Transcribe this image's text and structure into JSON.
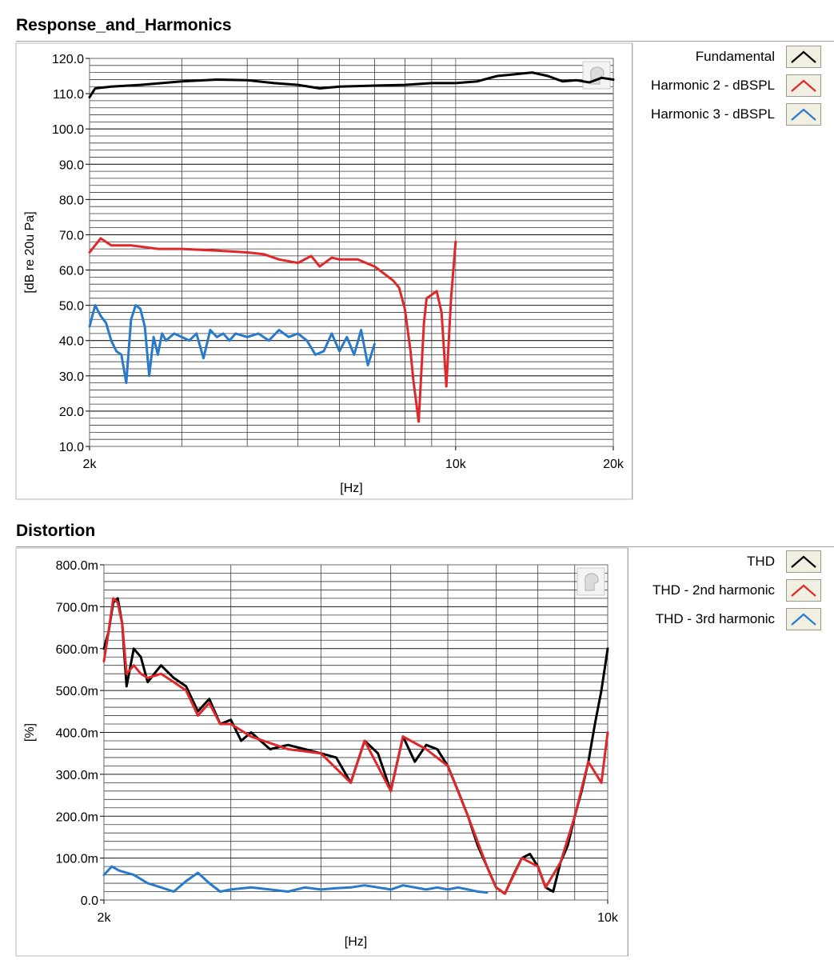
{
  "panels": [
    {
      "title": "Response_and_Harmonics",
      "legend": [
        {
          "label": "Fundamental",
          "color": "#000000"
        },
        {
          "label": "Harmonic 2 - dBSPL",
          "color": "#e0282a"
        },
        {
          "label": "Harmonic 3 - dBSPL",
          "color": "#2a7acb"
        }
      ]
    },
    {
      "title": "Distortion",
      "legend": [
        {
          "label": "THD",
          "color": "#000000"
        },
        {
          "label": "THD - 2nd harmonic",
          "color": "#e0282a"
        },
        {
          "label": "THD - 3rd harmonic",
          "color": "#2a7acb"
        }
      ]
    }
  ],
  "chart_data": [
    {
      "type": "line",
      "xscale": "log",
      "xlabel": "[Hz]",
      "ylabel": "[dB re 20u Pa]",
      "xlim": [
        2000,
        20000
      ],
      "ylim": [
        10,
        120
      ],
      "xticks": [
        {
          "value": 2000,
          "label": "2k"
        },
        {
          "value": 10000,
          "label": "10k"
        },
        {
          "value": 20000,
          "label": "20k"
        }
      ],
      "yticks": [
        "10.0",
        "20.0",
        "30.0",
        "40.0",
        "50.0",
        "60.0",
        "70.0",
        "80.0",
        "90.0",
        "100.0",
        "110.0",
        "120.0"
      ],
      "grid": true,
      "legend_position": "right",
      "series": [
        {
          "name": "Fundamental",
          "color": "#000000",
          "x": [
            2000,
            2050,
            2200,
            2500,
            3000,
            3500,
            4000,
            4500,
            5000,
            5500,
            6000,
            7000,
            8000,
            9000,
            10000,
            11000,
            12000,
            13000,
            14000,
            15000,
            16000,
            17000,
            18000,
            19000,
            20000
          ],
          "y": [
            109,
            111.5,
            112,
            112.5,
            113.5,
            114,
            113.8,
            113,
            112.5,
            111.5,
            112,
            112.3,
            112.5,
            113,
            113,
            113.5,
            115,
            115.5,
            116,
            115,
            113.5,
            113.8,
            113.2,
            114.5,
            114
          ]
        },
        {
          "name": "Harmonic 2 - dBSPL",
          "color": "#e0282a",
          "x": [
            2000,
            2050,
            2100,
            2200,
            2400,
            2700,
            3000,
            3500,
            4000,
            4300,
            4600,
            5000,
            5300,
            5500,
            5800,
            6000,
            6500,
            7000,
            7300,
            7600,
            7800,
            8000,
            8200,
            8300,
            8500,
            8700,
            8800,
            9000,
            9200,
            9400,
            9600,
            9800,
            10000
          ],
          "y": [
            65,
            67,
            69,
            67,
            67,
            66,
            66,
            65.5,
            65,
            64.5,
            63,
            62,
            64,
            61,
            63.5,
            63,
            63,
            61,
            59,
            57,
            55,
            49,
            37,
            29,
            17,
            45,
            52,
            53,
            54,
            48,
            27,
            52,
            68
          ]
        },
        {
          "name": "Harmonic 3 - dBSPL",
          "color": "#2a7acb",
          "x": [
            2000,
            2050,
            2100,
            2150,
            2200,
            2250,
            2300,
            2350,
            2400,
            2450,
            2500,
            2550,
            2600,
            2650,
            2700,
            2750,
            2800,
            2900,
            3000,
            3100,
            3200,
            3300,
            3400,
            3500,
            3600,
            3700,
            3800,
            4000,
            4200,
            4400,
            4600,
            4800,
            5000,
            5200,
            5400,
            5600,
            5800,
            6000,
            6200,
            6400,
            6600,
            6800,
            7000
          ],
          "y": [
            44,
            50,
            47,
            45,
            40,
            37,
            36,
            28,
            46,
            50,
            49,
            44,
            30,
            41,
            36,
            42,
            40,
            42,
            41,
            40,
            42,
            35,
            43,
            41,
            42,
            40,
            42,
            41,
            42,
            40,
            43,
            41,
            42,
            40,
            36,
            37,
            42,
            37,
            41,
            36,
            43,
            33,
            39
          ]
        }
      ]
    },
    {
      "type": "line",
      "xscale": "log",
      "xlabel": "[Hz]",
      "ylabel": "[%]",
      "xlim": [
        2000,
        10000
      ],
      "ylim": [
        0,
        800
      ],
      "xticks": [
        {
          "value": 2000,
          "label": "2k"
        },
        {
          "value": 10000,
          "label": "10k"
        }
      ],
      "yticks": [
        "0.0",
        "100.0m",
        "200.0m",
        "300.0m",
        "400.0m",
        "500.0m",
        "600.0m",
        "700.0m",
        "800.0m"
      ],
      "grid": true,
      "legend_position": "right",
      "series": [
        {
          "name": "THD",
          "color": "#000000",
          "x": [
            2000,
            2030,
            2060,
            2090,
            2120,
            2150,
            2200,
            2250,
            2300,
            2400,
            2500,
            2600,
            2700,
            2800,
            2900,
            3000,
            3100,
            3200,
            3400,
            3600,
            3800,
            4000,
            4200,
            4400,
            4600,
            4800,
            5000,
            5200,
            5400,
            5600,
            5800,
            6000,
            6200,
            6400,
            6600,
            6800,
            7000,
            7200,
            7400,
            7600,
            7800,
            8000,
            8200,
            8400,
            8600,
            8800,
            9000,
            9200,
            9400,
            9600,
            9800,
            10000
          ],
          "y": [
            600,
            640,
            710,
            720,
            660,
            510,
            600,
            580,
            520,
            560,
            530,
            510,
            450,
            480,
            420,
            430,
            380,
            400,
            360,
            370,
            360,
            350,
            340,
            280,
            380,
            350,
            260,
            390,
            330,
            370,
            360,
            320,
            260,
            200,
            130,
            80,
            30,
            15,
            60,
            100,
            110,
            80,
            30,
            20,
            90,
            130,
            200,
            260,
            330,
            420,
            500,
            600
          ]
        },
        {
          "name": "THD - 2nd harmonic",
          "color": "#e0282a",
          "x": [
            2000,
            2030,
            2060,
            2090,
            2120,
            2150,
            2200,
            2250,
            2300,
            2400,
            2500,
            2600,
            2700,
            2800,
            2900,
            3000,
            3200,
            3600,
            4000,
            4400,
            4600,
            5000,
            5200,
            5600,
            6000,
            6400,
            6800,
            7000,
            7200,
            7600,
            8000,
            8200,
            8600,
            9000,
            9400,
            9800,
            10000
          ],
          "y": [
            570,
            640,
            720,
            710,
            660,
            540,
            560,
            540,
            530,
            540,
            520,
            500,
            440,
            470,
            420,
            420,
            390,
            360,
            350,
            280,
            380,
            260,
            390,
            360,
            320,
            200,
            80,
            30,
            15,
            100,
            80,
            30,
            90,
            200,
            330,
            280,
            400
          ]
        },
        {
          "name": "THD - 3rd harmonic",
          "color": "#2a7acb",
          "x": [
            2000,
            2050,
            2100,
            2200,
            2300,
            2400,
            2500,
            2600,
            2700,
            2800,
            2900,
            3000,
            3200,
            3400,
            3600,
            3800,
            4000,
            4200,
            4400,
            4600,
            4800,
            5000,
            5200,
            5400,
            5600,
            5800,
            6000,
            6200,
            6400,
            6600,
            6800
          ],
          "y": [
            60,
            80,
            70,
            60,
            40,
            30,
            20,
            45,
            65,
            40,
            20,
            25,
            30,
            25,
            20,
            30,
            25,
            28,
            30,
            35,
            30,
            25,
            35,
            30,
            25,
            30,
            25,
            30,
            25,
            20,
            18
          ]
        }
      ]
    }
  ]
}
